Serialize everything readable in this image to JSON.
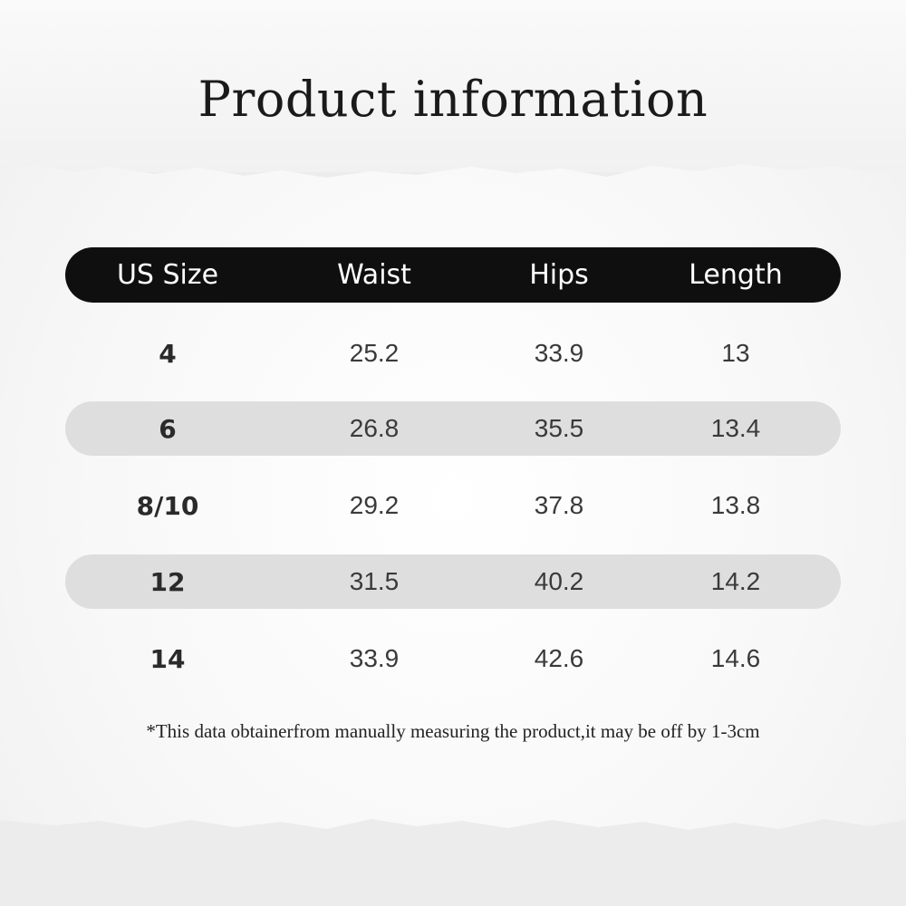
{
  "title": "Product information",
  "table": {
    "headers": [
      "US Size",
      "Waist",
      "Hips",
      "Length"
    ],
    "rows": [
      [
        "4",
        "25.2",
        "33.9",
        "13"
      ],
      [
        "6",
        "26.8",
        "35.5",
        "13.4"
      ],
      [
        "8/10",
        "29.2",
        "37.8",
        "13.8"
      ],
      [
        "12",
        "31.5",
        "40.2",
        "14.2"
      ],
      [
        "14",
        "33.9",
        "42.6",
        "14.6"
      ]
    ]
  },
  "note": "*This data obtainerfrom manually measuring the product,it may be off by 1-3cm",
  "colors": {
    "header_bg": "#0f0f0f",
    "stripe": "#dedede"
  }
}
